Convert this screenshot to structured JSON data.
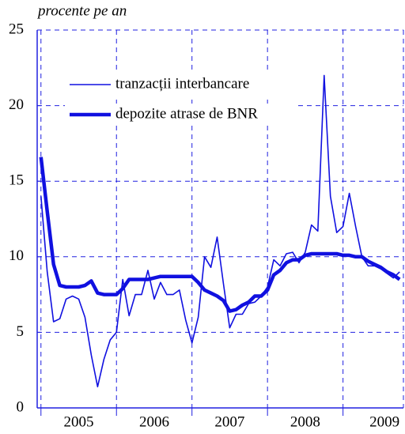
{
  "chart_data": {
    "type": "line",
    "title": "procente pe an",
    "x": [
      2005,
      2005.083,
      2005.167,
      2005.25,
      2005.333,
      2005.417,
      2005.5,
      2005.583,
      2005.667,
      2005.75,
      2005.833,
      2005.917,
      2006,
      2006.083,
      2006.167,
      2006.25,
      2006.333,
      2006.417,
      2006.5,
      2006.583,
      2006.667,
      2006.75,
      2006.833,
      2006.917,
      2007,
      2007.083,
      2007.167,
      2007.25,
      2007.333,
      2007.417,
      2007.5,
      2007.583,
      2007.667,
      2007.75,
      2007.833,
      2007.917,
      2008,
      2008.083,
      2008.167,
      2008.25,
      2008.333,
      2008.417,
      2008.5,
      2008.583,
      2008.667,
      2008.75,
      2008.833,
      2008.917,
      2009,
      2009.083,
      2009.167,
      2009.25,
      2009.333,
      2009.417,
      2009.5,
      2009.583,
      2009.667,
      2009.75
    ],
    "series": [
      {
        "name": "tranzacții interbancare",
        "color": "#1010e0",
        "width": 1.6,
        "values": [
          14,
          9,
          5.7,
          5.9,
          7.2,
          7.4,
          7.2,
          6,
          3.5,
          1.4,
          3.2,
          4.5,
          5,
          8.5,
          6.1,
          7.5,
          7.5,
          9.1,
          7.2,
          8.3,
          7.5,
          7.5,
          7.8,
          5.8,
          4.3,
          6,
          10,
          9.3,
          11.3,
          8.2,
          5.3,
          6.2,
          6.2,
          6.9,
          7,
          7.4,
          8,
          9.8,
          9.4,
          10.2,
          10.3,
          9.6,
          10.3,
          12.1,
          11.7,
          22,
          14,
          11.6,
          12,
          14.2,
          12,
          10,
          9.4,
          9.4,
          9.2,
          8.9,
          8.6,
          9
        ]
      },
      {
        "name": "depozite atrase de BNR",
        "color": "#1010e0",
        "width": 4.5,
        "values": [
          16.6,
          13,
          9.5,
          8.1,
          8,
          8,
          8,
          8.1,
          8.4,
          7.6,
          7.5,
          7.5,
          7.5,
          7.9,
          8.5,
          8.5,
          8.5,
          8.5,
          8.6,
          8.7,
          8.7,
          8.7,
          8.7,
          8.7,
          8.7,
          8.3,
          7.8,
          7.6,
          7.4,
          7.1,
          6.4,
          6.5,
          6.8,
          7,
          7.4,
          7.4,
          7.8,
          8.8,
          9.1,
          9.6,
          9.8,
          9.8,
          10.1,
          10.2,
          10.2,
          10.2,
          10.2,
          10.2,
          10.1,
          10.1,
          10,
          10,
          9.7,
          9.5,
          9.3,
          9,
          8.8,
          8.5
        ]
      }
    ],
    "xlim": [
      2004.95,
      2009.8
    ],
    "xticks": [
      {
        "value": 2005.5,
        "label": "2005"
      },
      {
        "value": 2006.5,
        "label": "2006"
      },
      {
        "value": 2007.5,
        "label": "2007"
      },
      {
        "value": 2008.5,
        "label": "2008"
      },
      {
        "value": 2009.55,
        "label": "2009"
      }
    ],
    "xgrid": [
      2005,
      2006,
      2007,
      2008,
      2009
    ],
    "ylim": [
      0,
      25
    ],
    "yticks": [
      0,
      5,
      10,
      15,
      20,
      25
    ],
    "grid": true,
    "legend": "upper-left"
  }
}
